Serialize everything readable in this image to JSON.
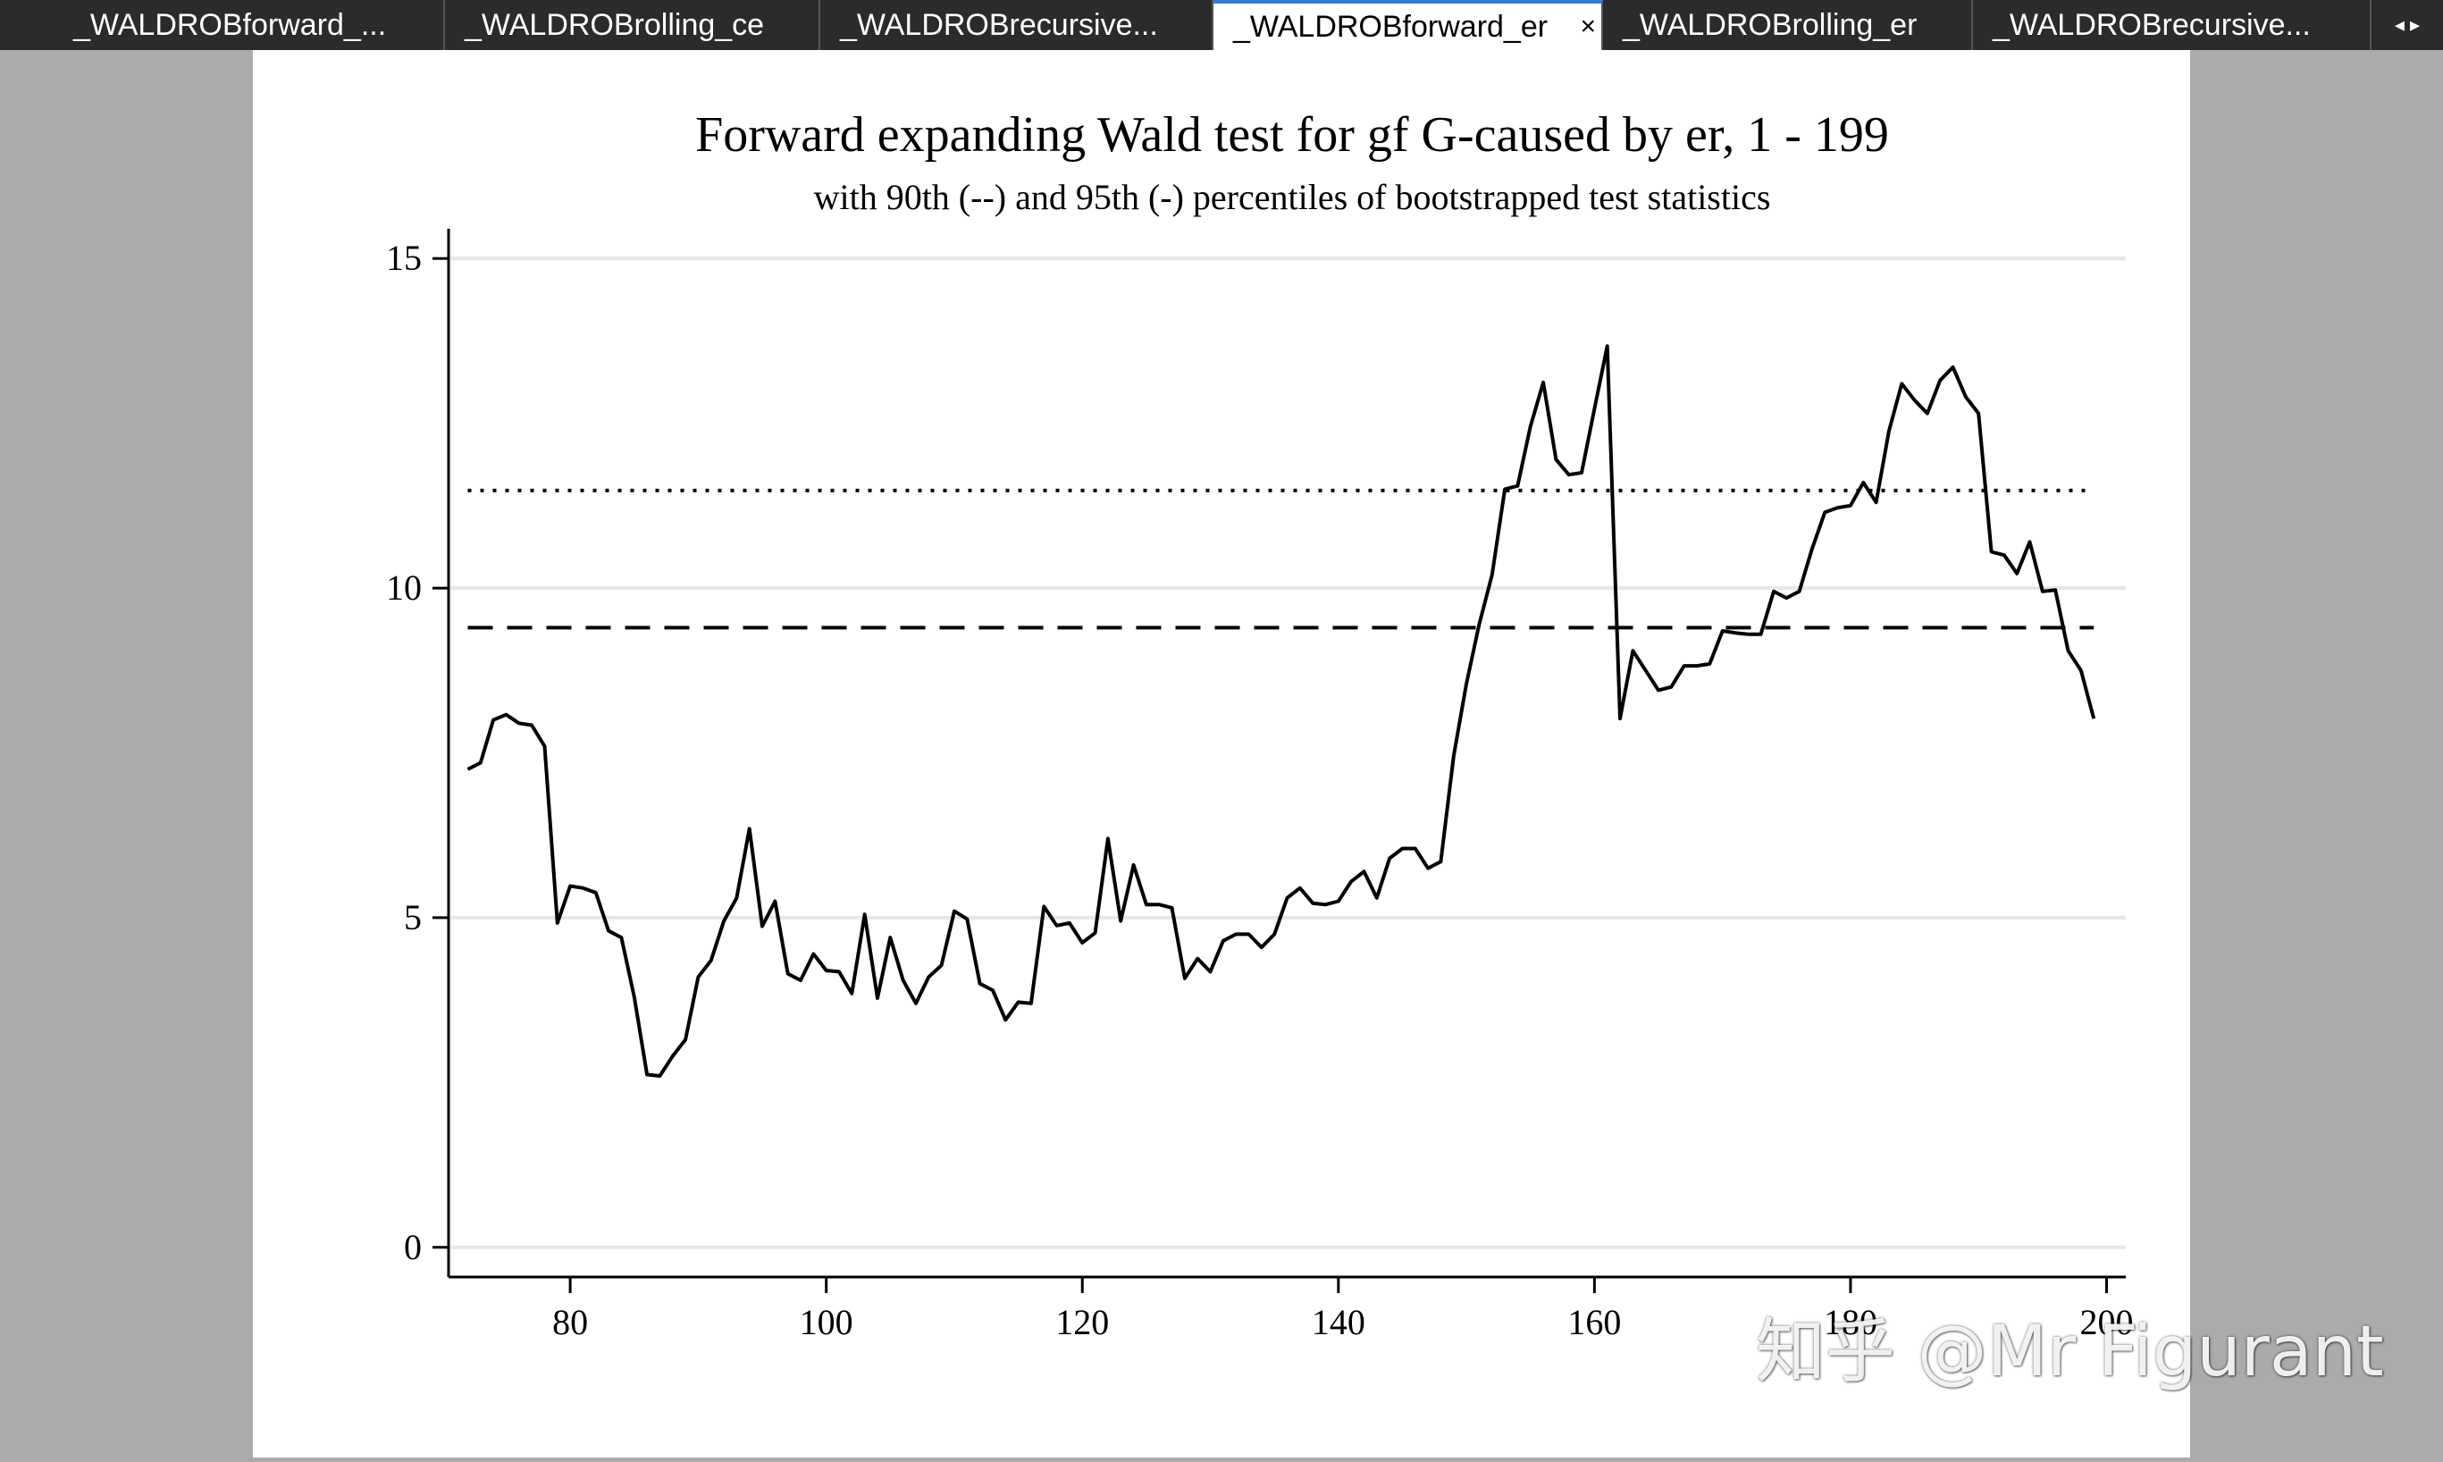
{
  "tabs": [
    {
      "label": "_WALDROBforward_...",
      "active": false
    },
    {
      "label": "_WALDROBrolling_ce",
      "active": false
    },
    {
      "label": "_WALDROBrecursive...",
      "active": false
    },
    {
      "label": "_WALDROBforward_er",
      "active": true
    },
    {
      "label": "_WALDROBrolling_er",
      "active": false
    },
    {
      "label": "_WALDROBrecursive...",
      "active": false
    }
  ],
  "tab_close": "×",
  "tab_nav": "◂ ▸",
  "watermark": "知乎 @Mr Figurant",
  "chart_data": {
    "type": "line",
    "title": "Forward expanding Wald test for gf G-caused by er, 1 - 199",
    "subtitle": "with 90th (--) and 95th (-) percentiles of bootstrapped test statistics",
    "xlabel": "",
    "ylabel": "",
    "xlim": [
      70.5,
      201.5
    ],
    "ylim": [
      -0.45,
      15.45
    ],
    "xticks": [
      80,
      100,
      120,
      140,
      160,
      180,
      200
    ],
    "yticks": [
      0,
      5,
      10,
      15
    ],
    "grid": "horizontal",
    "x_start": 72,
    "series": [
      {
        "name": "Wald statistic",
        "style": "solid",
        "values": [
          7.25,
          7.35,
          8.0,
          8.08,
          7.95,
          7.92,
          7.6,
          4.92,
          5.48,
          5.45,
          5.38,
          4.8,
          4.7,
          3.8,
          2.62,
          2.6,
          2.9,
          3.15,
          4.1,
          4.35,
          4.95,
          5.3,
          6.35,
          4.87,
          5.25,
          4.15,
          4.05,
          4.45,
          4.2,
          4.18,
          3.85,
          5.05,
          3.78,
          4.7,
          4.05,
          3.7,
          4.1,
          4.28,
          5.1,
          4.98,
          4.0,
          3.9,
          3.45,
          3.72,
          3.7,
          5.17,
          4.88,
          4.92,
          4.62,
          4.77,
          6.2,
          4.95,
          5.8,
          5.2,
          5.2,
          5.15,
          4.08,
          4.38,
          4.18,
          4.65,
          4.75,
          4.75,
          4.55,
          4.75,
          5.3,
          5.45,
          5.22,
          5.2,
          5.25,
          5.55,
          5.7,
          5.3,
          5.9,
          6.05,
          6.05,
          5.75,
          5.85,
          7.45,
          8.55,
          9.45,
          10.2,
          11.5,
          11.55,
          12.45,
          13.12,
          11.95,
          11.72,
          11.75,
          12.72,
          13.67,
          8.02,
          9.05,
          8.75,
          8.45,
          8.5,
          8.82,
          8.82,
          8.85,
          9.35,
          9.32,
          9.3,
          9.3,
          9.95,
          9.85,
          9.95,
          10.6,
          11.15,
          11.22,
          11.25,
          11.6,
          11.3,
          12.38,
          13.1,
          12.85,
          12.65,
          13.15,
          13.35,
          12.9,
          12.65,
          10.55,
          10.5,
          10.22,
          10.7,
          9.95,
          9.97,
          9.05,
          8.75,
          8.02
        ]
      },
      {
        "name": "90th percentile",
        "style": "dashed",
        "values": [
          9.4
        ]
      },
      {
        "name": "95th percentile",
        "style": "dotted",
        "values": [
          11.48
        ]
      }
    ]
  }
}
